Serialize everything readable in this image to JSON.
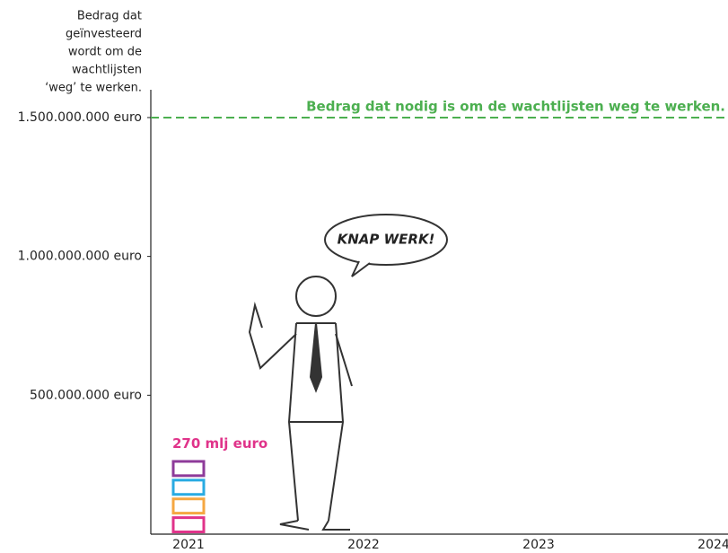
{
  "chart_data": {
    "type": "bar",
    "y_label_lines": [
      "Bedrag dat",
      "geïnvesteerd",
      "wordt om de",
      "wachtlijsten",
      "‘weg’ te werken."
    ],
    "categories": [
      "2021",
      "2022",
      "2023",
      "2024"
    ],
    "series": [
      {
        "color": "#e0338a",
        "values": [
          67500000,
          null,
          null,
          null
        ]
      },
      {
        "color": "#f5a742",
        "values": [
          67500000,
          null,
          null,
          null
        ]
      },
      {
        "color": "#29abe2",
        "values": [
          67500000,
          null,
          null,
          null
        ]
      },
      {
        "color": "#8e3b9a",
        "values": [
          67500000,
          null,
          null,
          null
        ]
      }
    ],
    "total": 270000000,
    "total_label": "270 mlj euro",
    "total_color": "#e0338a",
    "reference_line": {
      "value": 1500000000,
      "label": "Bedrag dat nodig is om de wachtlijsten weg te werken.",
      "color": "#4caf50"
    },
    "ylim": [
      0,
      1600000000
    ],
    "yticks": [
      {
        "value": 500000000,
        "label": "500.000.000 euro"
      },
      {
        "value": 1000000000,
        "label": "1.000.000.000 euro"
      },
      {
        "value": 1500000000,
        "label": "1.500.000.000 euro"
      }
    ]
  },
  "illustration_text": "KNAP WERK!"
}
